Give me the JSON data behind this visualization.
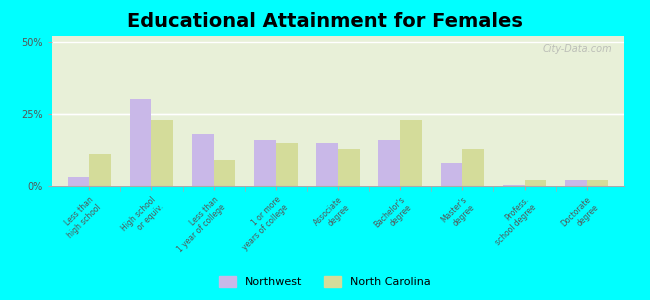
{
  "title": "Educational Attainment for Females",
  "categories": [
    "Less than\nhigh school",
    "High school\nor equiv.",
    "Less than\n1 year of college",
    "1 or more\nyears of college",
    "Associate\ndegree",
    "Bachelor's\ndegree",
    "Master's\ndegree",
    "Profess.\nschool degree",
    "Doctorate\ndegree"
  ],
  "northwest": [
    3.0,
    30.0,
    18.0,
    16.0,
    15.0,
    16.0,
    8.0,
    0.5,
    2.0
  ],
  "north_carolina": [
    11.0,
    23.0,
    9.0,
    15.0,
    13.0,
    23.0,
    13.0,
    2.0,
    2.0
  ],
  "northwest_color": "#c9b8e8",
  "nc_color": "#d4dc9a",
  "background_color": "#00ffff",
  "plot_bg_top": "#e8f0d8",
  "plot_bg_bottom": "#f5f8ee",
  "yticks": [
    0,
    25,
    50
  ],
  "ylim": [
    0,
    52
  ],
  "title_fontsize": 14,
  "watermark": "City-Data.com"
}
